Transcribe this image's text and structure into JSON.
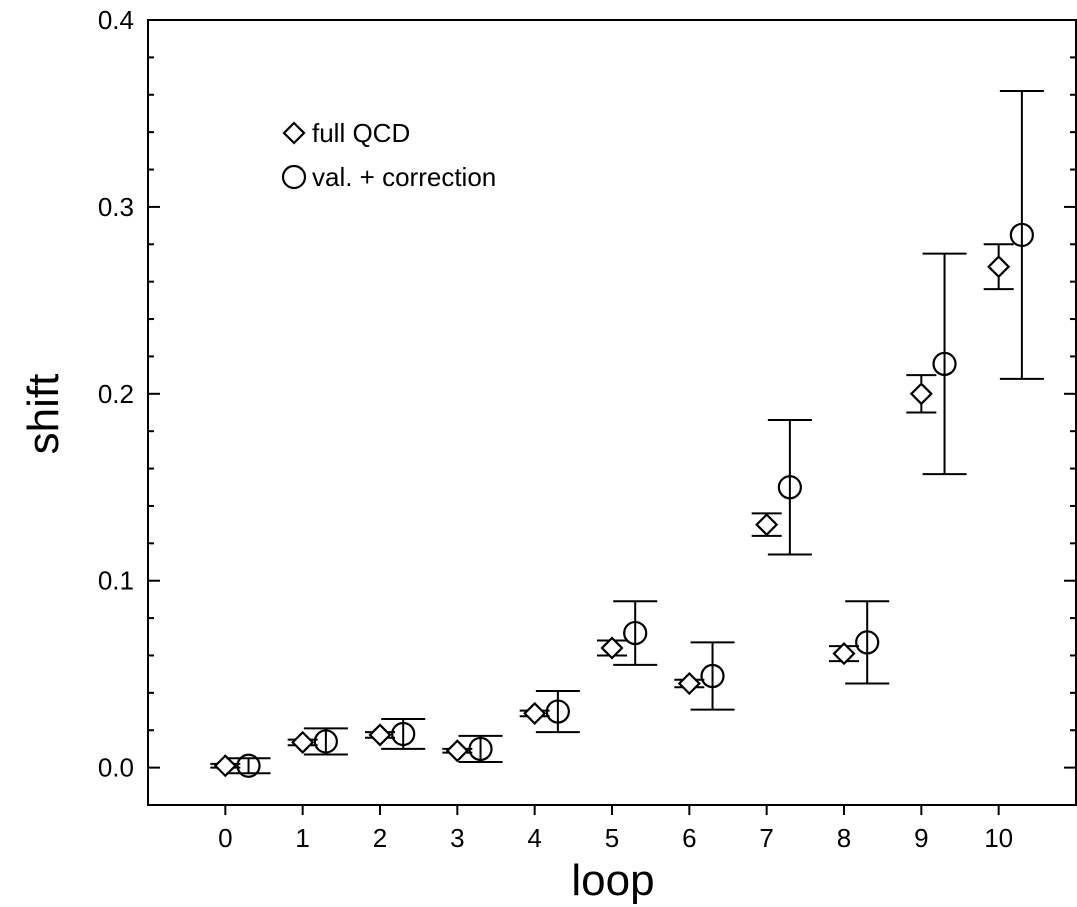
{
  "chart_data": {
    "type": "scatter",
    "xlabel": "loop",
    "ylabel": "shift",
    "xlim": [
      -1,
      11
    ],
    "ylim": [
      -0.02,
      0.4
    ],
    "x_ticks": [
      0,
      1,
      2,
      3,
      4,
      5,
      6,
      7,
      8,
      9,
      10
    ],
    "y_ticks": [
      0.0,
      0.1,
      0.2,
      0.3,
      0.4
    ],
    "y_tick_labels": [
      "0.0",
      "0.1",
      "0.2",
      "0.3",
      "0.4"
    ],
    "grid": false,
    "legend_position": "top-left",
    "series": [
      {
        "name": "full QCD",
        "marker": "diamond",
        "x": [
          0,
          1,
          2,
          3,
          4,
          5,
          6,
          7,
          8,
          9,
          10
        ],
        "y": [
          0.001,
          0.0135,
          0.0175,
          0.009,
          0.029,
          0.064,
          0.045,
          0.13,
          0.061,
          0.2,
          0.268
        ],
        "err": [
          0.001,
          0.0015,
          0.0015,
          0.001,
          0.0015,
          0.004,
          0.002,
          0.006,
          0.004,
          0.01,
          0.012
        ]
      },
      {
        "name": "val. + correction",
        "marker": "circle",
        "x": [
          0.3,
          1.3,
          2.3,
          3.3,
          4.3,
          5.3,
          6.3,
          7.3,
          8.3,
          9.3,
          10.3
        ],
        "y": [
          0.001,
          0.014,
          0.018,
          0.01,
          0.03,
          0.072,
          0.049,
          0.15,
          0.067,
          0.216,
          0.285
        ],
        "err": [
          0.004,
          0.007,
          0.008,
          0.007,
          0.011,
          0.017,
          0.018,
          0.036,
          0.022,
          0.059,
          0.077
        ]
      }
    ]
  }
}
